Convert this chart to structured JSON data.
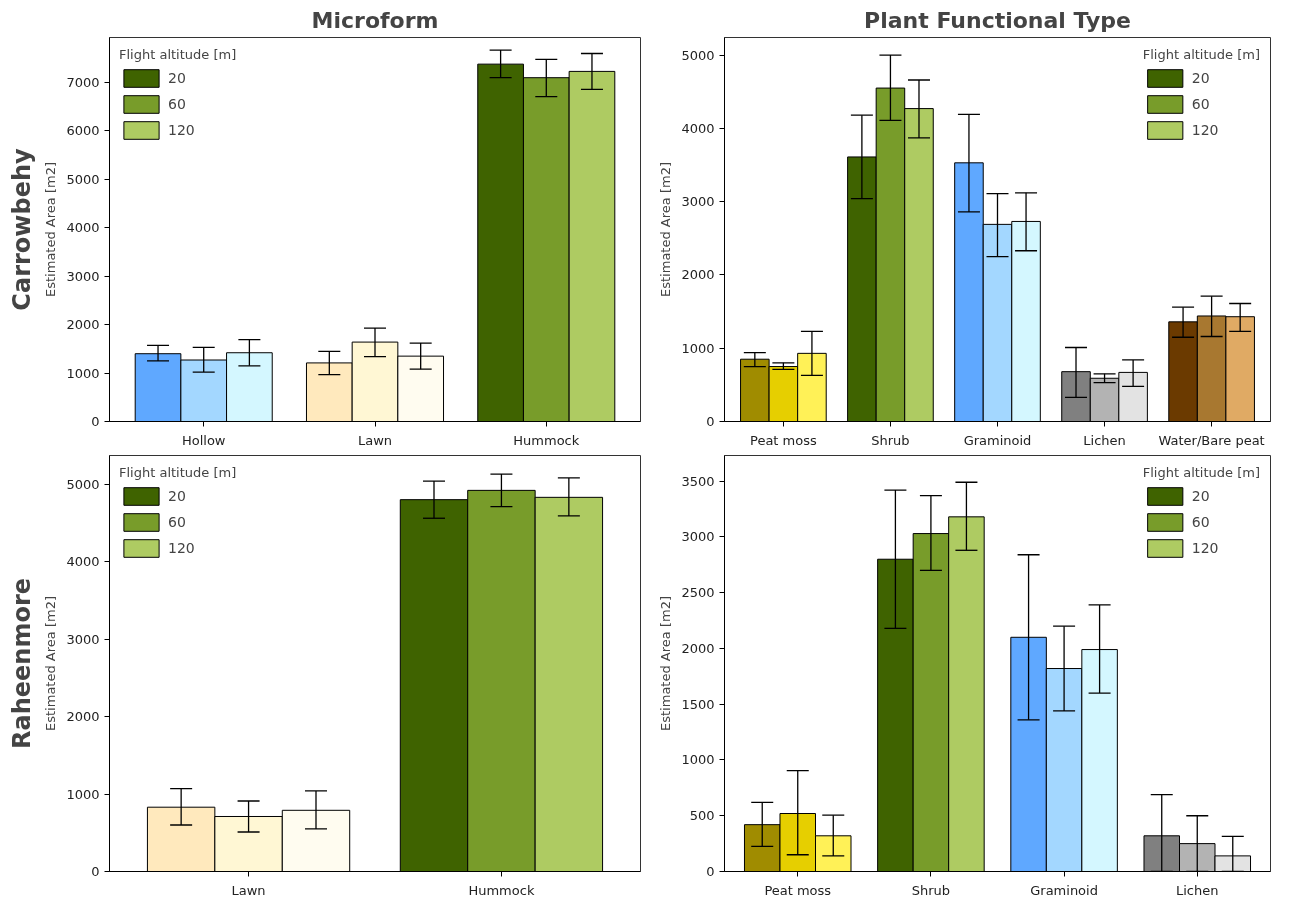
{
  "chart_data": [
    {
      "type": "bar",
      "title": "Microform",
      "annotations": [
        "Carrowbehy"
      ],
      "ylabel": "Estimated Area [m2]",
      "legend_title": "Flight altitude [m]",
      "legend": "top left",
      "grid": false,
      "categories": [
        "Hollow",
        "Lawn",
        "Hummock"
      ],
      "ylim": [
        0,
        7930
      ],
      "yticks": [
        0,
        1000,
        2000,
        3000,
        4000,
        5000,
        6000,
        7000
      ],
      "series": [
        {
          "name": "20",
          "color": "#3f6300",
          "colors": [
            "#5fa8ff",
            "#ffe9bd",
            "#3f6300"
          ],
          "values": [
            1400,
            1210,
            7380
          ],
          "errors": [
            [
              1250,
              1570
            ],
            [
              970,
              1450
            ],
            [
              7100,
              7670
            ]
          ]
        },
        {
          "name": "60",
          "color": "#789c2a",
          "colors": [
            "#a3d7ff",
            "#fff7d4",
            "#789c2a"
          ],
          "values": [
            1270,
            1640,
            7100
          ],
          "errors": [
            [
              1020,
              1530
            ],
            [
              1340,
              1930
            ],
            [
              6710,
              7480
            ]
          ]
        },
        {
          "name": "120",
          "color": "#aecb62",
          "colors": [
            "#d4f7ff",
            "#fffcf0",
            "#aecb62"
          ],
          "values": [
            1420,
            1350,
            7230
          ],
          "errors": [
            [
              1150,
              1690
            ],
            [
              1080,
              1620
            ],
            [
              6860,
              7600
            ]
          ]
        }
      ]
    },
    {
      "type": "bar",
      "title": "Plant Functional Type",
      "ylabel": "Estimated Area [m2]",
      "legend_title": "Flight altitude [m]",
      "legend": "top right",
      "grid": false,
      "categories": [
        "Peat moss",
        "Shrub",
        "Graminoid",
        "Lichen",
        "Water/Bare peat"
      ],
      "ylim": [
        0,
        5240
      ],
      "yticks": [
        0,
        1000,
        2000,
        3000,
        4000,
        5000
      ],
      "series": [
        {
          "name": "20",
          "color": "#3f6300",
          "colors": [
            "#a08c00",
            "#3f6300",
            "#5fa8ff",
            "#808080",
            "#6b3a00"
          ],
          "values": [
            850,
            3610,
            3530,
            680,
            1360
          ],
          "errors": [
            [
              750,
              940
            ],
            [
              3040,
              4180
            ],
            [
              2860,
              4190
            ],
            [
              330,
              1010
            ],
            [
              1150,
              1560
            ]
          ]
        },
        {
          "name": "60",
          "color": "#789c2a",
          "colors": [
            "#e6cf00",
            "#789c2a",
            "#a3d7ff",
            "#b3b3b3",
            "#a87830"
          ],
          "values": [
            750,
            4550,
            2690,
            590,
            1440
          ],
          "errors": [
            [
              710,
              800
            ],
            [
              4110,
              5000
            ],
            [
              2250,
              3110
            ],
            [
              530,
              650
            ],
            [
              1160,
              1710
            ]
          ]
        },
        {
          "name": "120",
          "color": "#aecb62",
          "colors": [
            "#fff157",
            "#aecb62",
            "#d4f7ff",
            "#e3e3e3",
            "#e0aa64"
          ],
          "values": [
            930,
            4270,
            2730,
            670,
            1430
          ],
          "errors": [
            [
              630,
              1230
            ],
            [
              3870,
              4660
            ],
            [
              2330,
              3120
            ],
            [
              480,
              840
            ],
            [
              1230,
              1610
            ]
          ]
        }
      ]
    },
    {
      "type": "bar",
      "annotations": [
        "Raheenmore"
      ],
      "ylabel": "Estimated Area [m2]",
      "legend_title": "Flight altitude [m]",
      "legend": "top left",
      "grid": false,
      "categories": [
        "Lawn",
        "Hummock"
      ],
      "ylim": [
        0,
        5370
      ],
      "yticks": [
        0,
        1000,
        2000,
        3000,
        4000,
        5000
      ],
      "series": [
        {
          "name": "20",
          "color": "#3f6300",
          "colors": [
            "#ffe9bd",
            "#3f6300"
          ],
          "values": [
            830,
            4800
          ],
          "errors": [
            [
              600,
              1070
            ],
            [
              4560,
              5040
            ]
          ]
        },
        {
          "name": "60",
          "color": "#789c2a",
          "colors": [
            "#fff7d4",
            "#789c2a"
          ],
          "values": [
            710,
            4920
          ],
          "errors": [
            [
              510,
              910
            ],
            [
              4710,
              5130
            ]
          ]
        },
        {
          "name": "120",
          "color": "#aecb62",
          "colors": [
            "#fffcf0",
            "#aecb62"
          ],
          "values": [
            790,
            4830
          ],
          "errors": [
            [
              550,
              1040
            ],
            [
              4590,
              5080
            ]
          ]
        }
      ]
    },
    {
      "type": "bar",
      "ylabel": "Estimated Area [m2]",
      "legend_title": "Flight altitude [m]",
      "legend": "top right",
      "grid": false,
      "categories": [
        "Peat moss",
        "Shrub",
        "Graminoid",
        "Lichen"
      ],
      "ylim": [
        0,
        3730
      ],
      "yticks": [
        0,
        500,
        1000,
        1500,
        2000,
        2500,
        3000,
        3500
      ],
      "series": [
        {
          "name": "20",
          "color": "#3f6300",
          "colors": [
            "#a08c00",
            "#3f6300",
            "#5fa8ff",
            "#808080"
          ],
          "values": [
            420,
            2800,
            2100,
            320
          ],
          "errors": [
            [
              225,
              620
            ],
            [
              2180,
              3420
            ],
            [
              1360,
              2840
            ],
            [
              0,
              690
            ]
          ]
        },
        {
          "name": "60",
          "color": "#789c2a",
          "colors": [
            "#e6cf00",
            "#789c2a",
            "#a3d7ff",
            "#b3b3b3"
          ],
          "values": [
            520,
            3030,
            1820,
            250
          ],
          "errors": [
            [
              150,
              905
            ],
            [
              2700,
              3370
            ],
            [
              1440,
              2200
            ],
            [
              0,
              500
            ]
          ]
        },
        {
          "name": "120",
          "color": "#aecb62",
          "colors": [
            "#fff157",
            "#aecb62",
            "#d4f7ff",
            "#e3e3e3"
          ],
          "values": [
            320,
            3180,
            1990,
            140
          ],
          "errors": [
            [
              140,
              505
            ],
            [
              2880,
              3490
            ],
            [
              1600,
              2390
            ],
            [
              0,
              315
            ]
          ]
        }
      ]
    }
  ]
}
